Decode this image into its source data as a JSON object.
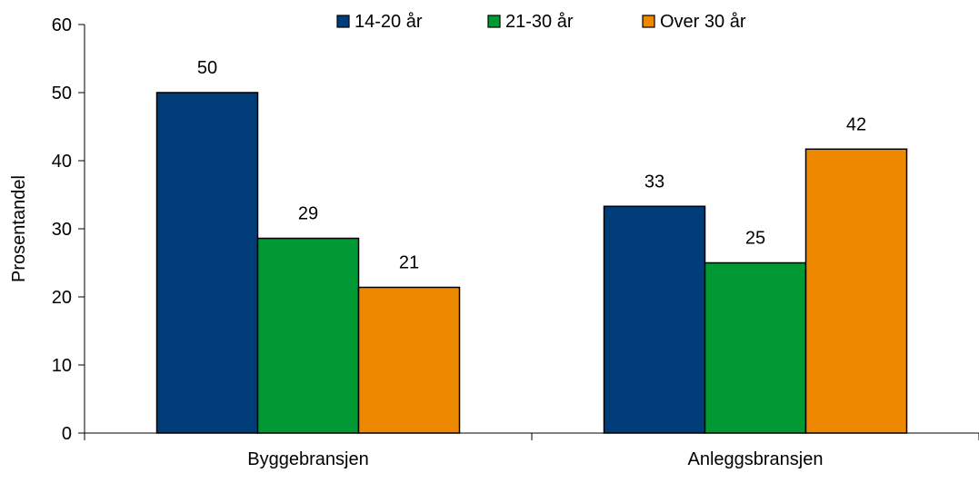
{
  "chart_data": {
    "type": "bar",
    "title": "",
    "xlabel": "",
    "ylabel": "Prosentandel",
    "ylim": [
      0,
      60
    ],
    "yticks": [
      0,
      10,
      20,
      30,
      40,
      50,
      60
    ],
    "grid": false,
    "legend_position": "top",
    "categories": [
      "Byggebransjen",
      "Anleggsbransjen"
    ],
    "series": [
      {
        "name": "14-20 år",
        "color": "#003c78",
        "values": [
          50,
          33.3
        ],
        "labels": [
          "50",
          "33"
        ]
      },
      {
        "name": "21-30 år",
        "color": "#009933",
        "values": [
          28.6,
          25
        ],
        "labels": [
          "29",
          "25"
        ]
      },
      {
        "name": "Over 30 år",
        "color": "#ee8800",
        "values": [
          21.4,
          41.7
        ],
        "labels": [
          "21",
          "42"
        ]
      }
    ]
  }
}
